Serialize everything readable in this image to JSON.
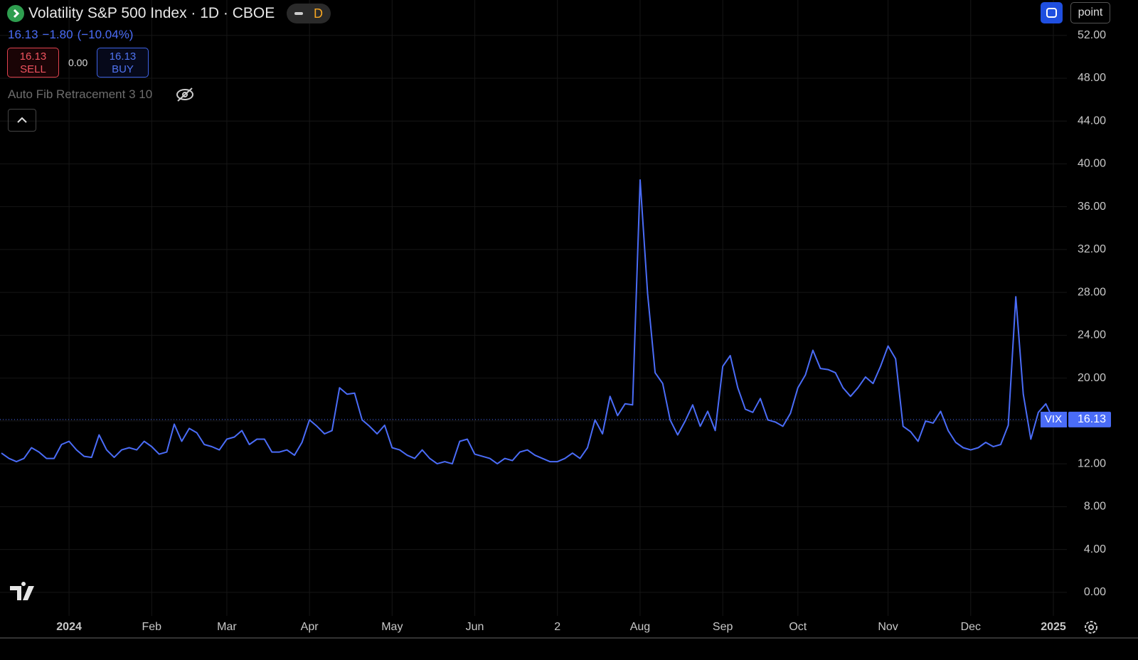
{
  "header": {
    "title": "Volatility S&P 500 Index · 1D · CBOE",
    "delay_badge": "D",
    "last": "16.13",
    "change": "−1.80",
    "change_percent": "(−10.04%)",
    "sell_price": "16.13",
    "sell_label": "SELL",
    "spread": "0.00",
    "buy_price": "16.13",
    "buy_label": "BUY",
    "indicator": "Auto Fib Retracement 3 10",
    "point": "point"
  },
  "chart_data": {
    "type": "line",
    "categories": [
      null,
      null,
      null,
      null,
      null,
      null,
      null,
      null,
      null,
      "2024",
      null,
      null,
      null,
      null,
      null,
      null,
      null,
      null,
      null,
      null,
      "Feb",
      null,
      null,
      null,
      null,
      null,
      null,
      null,
      null,
      null,
      "Mar",
      null,
      null,
      null,
      null,
      null,
      null,
      null,
      null,
      null,
      null,
      "Apr",
      null,
      null,
      null,
      null,
      null,
      null,
      null,
      null,
      null,
      null,
      "May",
      null,
      null,
      null,
      null,
      null,
      null,
      null,
      null,
      null,
      null,
      "Jun",
      null,
      null,
      null,
      null,
      null,
      null,
      null,
      null,
      null,
      null,
      "2",
      null,
      null,
      null,
      null,
      null,
      null,
      null,
      null,
      null,
      null,
      "Aug",
      null,
      null,
      null,
      null,
      null,
      null,
      null,
      null,
      null,
      null,
      "Sep",
      null,
      null,
      null,
      null,
      null,
      null,
      null,
      null,
      null,
      "Oct",
      null,
      null,
      null,
      null,
      null,
      null,
      null,
      null,
      null,
      null,
      null,
      "Nov",
      null,
      null,
      null,
      null,
      null,
      null,
      null,
      null,
      null,
      null,
      "Dec",
      null,
      null,
      null,
      null,
      null,
      null,
      null,
      null,
      null,
      null,
      "2025"
    ],
    "series": [
      {
        "name": "VIX",
        "color": "#4a6cf7",
        "values": [
          13.0,
          12.5,
          12.2,
          12.5,
          13.5,
          13.1,
          12.5,
          12.5,
          13.8,
          14.1,
          13.3,
          12.7,
          12.6,
          14.7,
          13.3,
          12.6,
          13.3,
          13.5,
          13.3,
          14.1,
          13.6,
          12.9,
          13.1,
          15.7,
          14.1,
          15.3,
          14.9,
          13.8,
          13.6,
          13.3,
          14.3,
          14.5,
          15.1,
          13.8,
          14.3,
          14.3,
          13.1,
          13.1,
          13.3,
          12.8,
          14.0,
          16.1,
          15.5,
          14.8,
          15.1,
          19.1,
          18.5,
          18.6,
          16.1,
          15.5,
          14.8,
          15.6,
          13.5,
          13.3,
          12.8,
          12.5,
          13.3,
          12.5,
          12.0,
          12.2,
          12.0,
          14.1,
          14.3,
          12.9,
          12.7,
          12.5,
          12.0,
          12.5,
          12.3,
          13.1,
          13.3,
          12.8,
          12.5,
          12.2,
          12.2,
          12.5,
          13.0,
          12.5,
          13.5,
          16.1,
          14.8,
          18.3,
          16.5,
          17.6,
          17.5,
          38.5,
          27.9,
          20.5,
          19.5,
          16.1,
          14.7,
          16.0,
          17.5,
          15.5,
          16.9,
          15.1,
          21.1,
          22.1,
          19.1,
          17.1,
          16.8,
          18.1,
          16.1,
          15.9,
          15.5,
          16.7,
          19.1,
          20.3,
          22.6,
          20.9,
          20.8,
          20.5,
          19.1,
          18.3,
          19.1,
          20.1,
          19.5,
          21.1,
          23.0,
          21.8,
          15.5,
          15.0,
          14.1,
          16.0,
          15.8,
          16.9,
          15.1,
          14.0,
          13.5,
          13.3,
          13.5,
          14.0,
          13.6,
          13.8,
          15.6,
          27.6,
          18.5,
          14.3,
          16.8,
          17.6,
          16.13
        ]
      }
    ],
    "ylim": [
      -2.2,
      55.3
    ],
    "yticks": [
      {
        "value": 0,
        "label": "0.00"
      },
      {
        "value": 4,
        "label": "4.00"
      },
      {
        "value": 8,
        "label": "8.00"
      },
      {
        "value": 12,
        "label": "12.00"
      },
      {
        "value": 16,
        "label": "16.00"
      },
      {
        "value": 20,
        "label": "20.00"
      },
      {
        "value": 24,
        "label": "24.00"
      },
      {
        "value": 28,
        "label": "28.00"
      },
      {
        "value": 32,
        "label": "32.00"
      },
      {
        "value": 36,
        "label": "36.00"
      },
      {
        "value": 40,
        "label": "40.00"
      },
      {
        "value": 44,
        "label": "44.00"
      },
      {
        "value": 48,
        "label": "48.00"
      },
      {
        "value": 52,
        "label": "52.00"
      }
    ],
    "grid": true
  }
}
